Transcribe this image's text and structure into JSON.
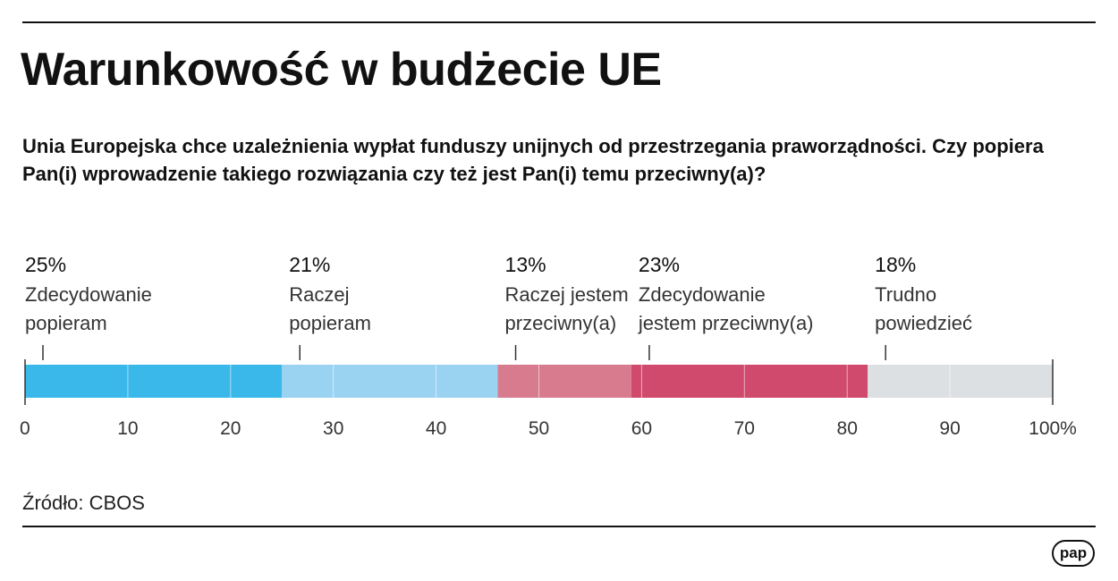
{
  "header": {
    "title": "Warunkowość w budżecie UE",
    "subtitle": "Unia Europejska chce uzależnienia wypłat funduszy unijnych od przestrzegania praworządności. Czy popiera Pan(i) wprowadzenie takiego rozwiązania czy też jest Pan(i) temu przeciwny(a)?"
  },
  "footer": {
    "source": "Źródło: CBOS",
    "logo": "pap"
  },
  "chart_data": {
    "type": "bar",
    "orientation": "horizontal-stacked-100",
    "series": [
      {
        "pct_label": "25%",
        "label_lines": [
          "Zdecydowanie",
          "popieram"
        ],
        "value": 25,
        "color": "#3bb8ea"
      },
      {
        "pct_label": "21%",
        "label_lines": [
          "Raczej",
          "popieram"
        ],
        "value": 21,
        "color": "#9ad2f2"
      },
      {
        "pct_label": "13%",
        "label_lines": [
          "Raczej jestem",
          "przeciwny(a)"
        ],
        "value": 13,
        "color": "#d97b8f"
      },
      {
        "pct_label": "23%",
        "label_lines": [
          "Zdecydowanie",
          "jestem przeciwny(a)"
        ],
        "value": 23,
        "color": "#d04a6e"
      },
      {
        "pct_label": "18%",
        "label_lines": [
          "Trudno",
          "powiedzieć"
        ],
        "value": 18,
        "color": "#dde0e3"
      }
    ],
    "xlim": [
      0,
      100
    ],
    "xticks": [
      "0",
      "10",
      "20",
      "30",
      "40",
      "50",
      "60",
      "70",
      "80",
      "90",
      "100%"
    ],
    "grid": true
  }
}
